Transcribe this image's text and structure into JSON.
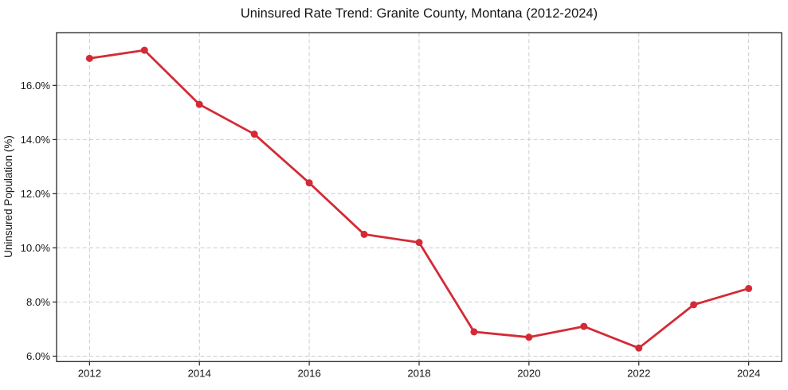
{
  "figure": {
    "title": "Uninsured Rate Trend: Granite County, Montana (2012-2024)",
    "ylabel": "Uninsured Population (%)",
    "xlabel": ""
  },
  "colors": {
    "line": "#d32b36",
    "marker": "#d32b36",
    "grid": "#cccccc",
    "frame": "#262626",
    "text": "#161616",
    "background": "#ffffff"
  },
  "chart_data": {
    "type": "line",
    "title": "Uninsured Rate Trend: Granite County, Montana (2012-2024)",
    "xlabel": "",
    "ylabel": "Uninsured Population (%)",
    "x": [
      2012,
      2013,
      2014,
      2015,
      2016,
      2017,
      2018,
      2019,
      2020,
      2021,
      2022,
      2023,
      2024
    ],
    "values": [
      17.0,
      17.3,
      15.3,
      14.2,
      12.4,
      10.5,
      10.2,
      6.9,
      6.7,
      7.1,
      6.3,
      7.9,
      8.5
    ],
    "xlim": [
      2011.4,
      2024.6
    ],
    "ylim": [
      5.8,
      17.95
    ],
    "xticks": {
      "values": [
        2012,
        2014,
        2016,
        2018,
        2020,
        2022,
        2024
      ],
      "labels": [
        "2012",
        "2014",
        "2016",
        "2018",
        "2020",
        "2022",
        "2024"
      ]
    },
    "yticks": {
      "values": [
        6,
        8,
        10,
        12,
        14,
        16
      ],
      "labels": [
        "6.0%",
        "8.0%",
        "10.0%",
        "12.0%",
        "14.0%",
        "16.0%"
      ]
    },
    "grid": {
      "enabled": true,
      "style": "dashed",
      "axes": "both"
    },
    "legend": "none",
    "marker": "circle"
  }
}
